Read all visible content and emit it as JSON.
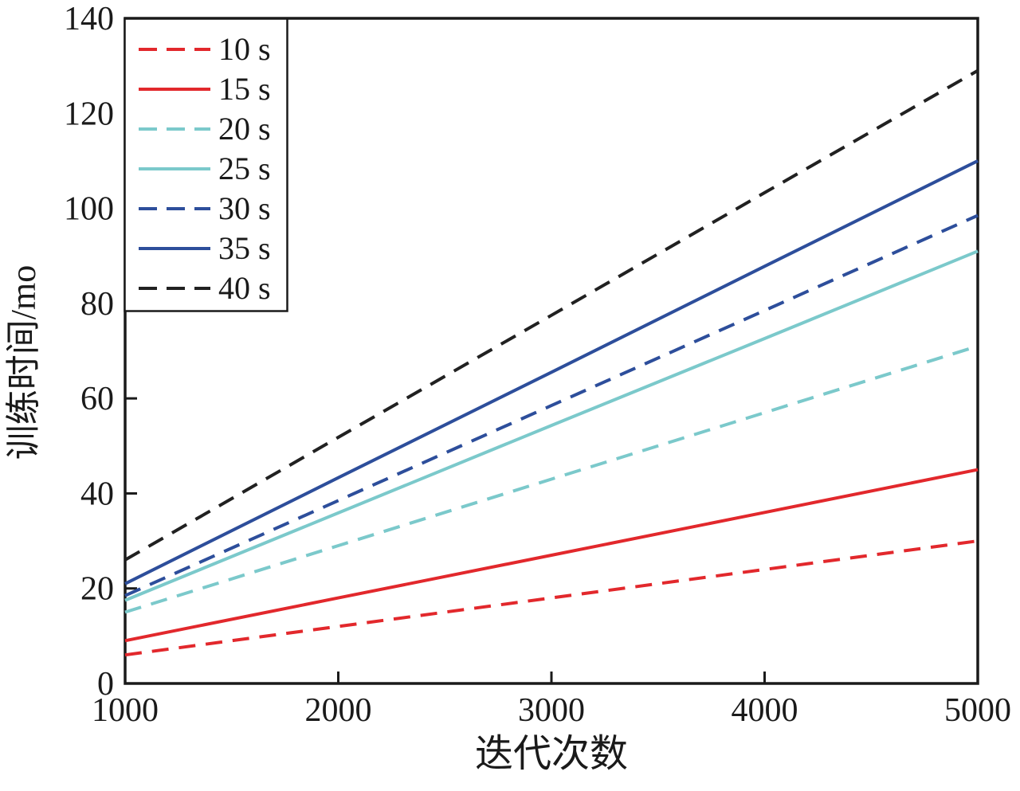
{
  "chart_data": {
    "type": "line",
    "title": "",
    "xlabel": "迭代次数",
    "ylabel": "训练时间/mo",
    "xlim": [
      1000,
      5000
    ],
    "ylim": [
      0,
      140
    ],
    "x_ticks": [
      1000,
      2000,
      3000,
      4000,
      5000
    ],
    "y_ticks": [
      0,
      20,
      40,
      60,
      80,
      100,
      120,
      140
    ],
    "grid": false,
    "legend_position": "upper left",
    "x": [
      1000,
      2000,
      3000,
      4000,
      5000
    ],
    "series": [
      {
        "name": "10 s",
        "color": "#e2282c",
        "style": "dashed",
        "values": [
          6,
          12,
          18,
          24,
          30
        ]
      },
      {
        "name": "15 s",
        "color": "#e2282c",
        "style": "solid",
        "values": [
          9,
          18,
          27,
          36,
          45
        ]
      },
      {
        "name": "20 s",
        "color": "#7bc9cb",
        "style": "dashed",
        "values": [
          15,
          29,
          43,
          57,
          71
        ]
      },
      {
        "name": "25 s",
        "color": "#7bc9cb",
        "style": "solid",
        "values": [
          17.5,
          35.9,
          54.3,
          72.6,
          91
        ]
      },
      {
        "name": "30 s",
        "color": "#2d4e9b",
        "style": "dashed",
        "values": [
          18.5,
          38.5,
          58.5,
          78.5,
          98.5
        ]
      },
      {
        "name": "35 s",
        "color": "#2d4e9b",
        "style": "solid",
        "values": [
          21,
          43.3,
          65.5,
          87.8,
          110
        ]
      },
      {
        "name": "40 s",
        "color": "#212121",
        "style": "dashed",
        "values": [
          26,
          51.8,
          77.5,
          103.3,
          129
        ]
      }
    ],
    "legend_entries": [
      "10 s",
      "15 s",
      "20 s",
      "25 s",
      "30 s",
      "35 s",
      "40 s"
    ]
  },
  "colors": {
    "axis": "#1a1a1a",
    "background": "#ffffff"
  }
}
